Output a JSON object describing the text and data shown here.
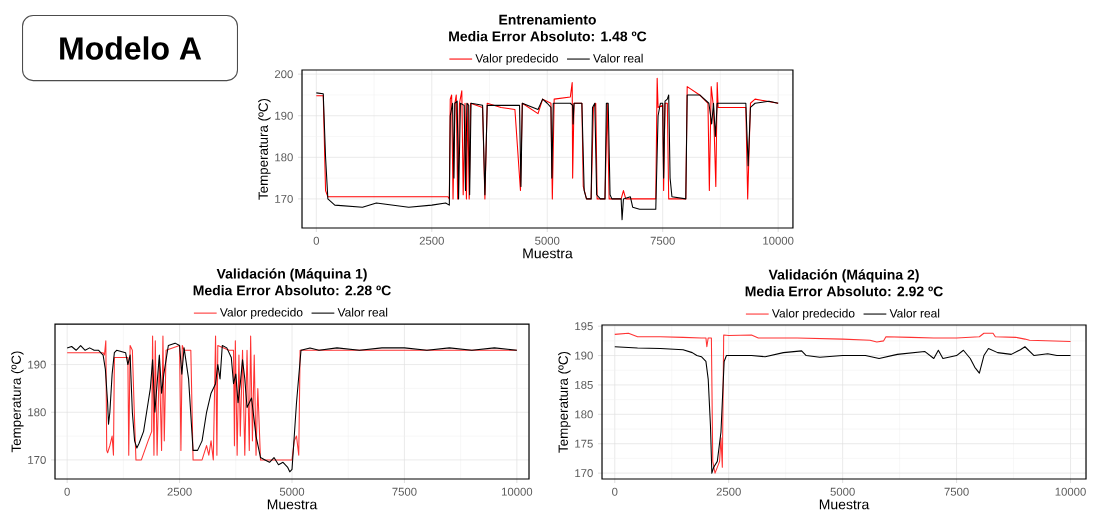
{
  "chart_data": [
    {
      "type": "other",
      "title": "Modelo A"
    },
    {
      "type": "line",
      "title": "Entrenamiento",
      "subtitle": "Media Error Absoluto: 1.48 ºC",
      "xlabel": "Muestra",
      "ylabel": "Temperatura (ºC)",
      "legend": "top",
      "grid": true,
      "xlim": [
        -310,
        10320
      ],
      "ylim": [
        163,
        201
      ],
      "xticks": [
        0,
        2500,
        5000,
        7500,
        10000
      ],
      "yticks": [
        170,
        180,
        190,
        200
      ],
      "series": [
        {
          "name": "Valor predecido",
          "color": "#ff0000",
          "x": [
            0,
            150,
            200,
            250,
            2850,
            2880,
            2900,
            2930,
            2960,
            3000,
            3030,
            3060,
            3100,
            3150,
            3180,
            3220,
            3250,
            3280,
            3310,
            3340,
            3600,
            3650,
            3700,
            4000,
            4300,
            4420,
            4460,
            4800,
            4900,
            5080,
            5110,
            5150,
            5500,
            5540,
            5550,
            5580,
            5750,
            5780,
            5850,
            5950,
            6000,
            6050,
            6080,
            6250,
            6300,
            6340,
            6600,
            6650,
            6700,
            7350,
            7380,
            7400,
            7500,
            7520,
            7550,
            7600,
            7630,
            8000,
            8030,
            8300,
            8480,
            8510,
            8550,
            8600,
            8650,
            8680,
            8700,
            9300,
            9340,
            9400,
            9500,
            10000
          ],
          "values": [
            194.8,
            194.8,
            172,
            170.5,
            170.5,
            170,
            194,
            195,
            170,
            193,
            195,
            170,
            193,
            196,
            171,
            193,
            170,
            193,
            170,
            193,
            192,
            170,
            193,
            192,
            191.5,
            172,
            193,
            190.5,
            194,
            193,
            170,
            194,
            194.5,
            198,
            175,
            193,
            193,
            173,
            170,
            170,
            192,
            193,
            170,
            170,
            193,
            170,
            170,
            172,
            170,
            170,
            199,
            192,
            192.5,
            172,
            193,
            193,
            170,
            170,
            197,
            195,
            193,
            172,
            197,
            192,
            173,
            198,
            192,
            192,
            170,
            193,
            194,
            193
          ]
        },
        {
          "name": "Valor real",
          "color": "#000000",
          "x": [
            0,
            150,
            200,
            250,
            400,
            1000,
            1300,
            2000,
            2500,
            2800,
            2880,
            2900,
            2950,
            2980,
            3000,
            3050,
            3080,
            3120,
            3200,
            3230,
            3260,
            3300,
            3320,
            3350,
            3600,
            3650,
            3700,
            4000,
            4400,
            4430,
            4460,
            4800,
            4900,
            5000,
            5080,
            5100,
            5130,
            5500,
            5550,
            5560,
            5580,
            5750,
            5800,
            5850,
            5950,
            5980,
            6030,
            6070,
            6150,
            6250,
            6280,
            6320,
            6360,
            6400,
            6550,
            6600,
            6620,
            6650,
            6800,
            6850,
            7000,
            7350,
            7400,
            7450,
            7500,
            7520,
            7550,
            7600,
            7630,
            7660,
            7700,
            8000,
            8030,
            8300,
            8500,
            8560,
            8600,
            8640,
            8680,
            9000,
            9300,
            9350,
            9400,
            9500,
            9800,
            10000
          ],
          "values": [
            195.5,
            195.3,
            180,
            170,
            168.5,
            168,
            169,
            168,
            168.5,
            169,
            168.5,
            190,
            193,
            175,
            193,
            193.5,
            170,
            193,
            192.5,
            172,
            193,
            192.5,
            171,
            193,
            192.5,
            171,
            192.5,
            192.5,
            192.5,
            173,
            193,
            191.5,
            194,
            193,
            192,
            175,
            193,
            193,
            192.5,
            188,
            193,
            193,
            172,
            170,
            170,
            192,
            193,
            171,
            170,
            170,
            193,
            193,
            171,
            170,
            170,
            170,
            165,
            170,
            170.5,
            168,
            167.5,
            167.5,
            190,
            193,
            193,
            175,
            193.5,
            194,
            195,
            175,
            170.5,
            170,
            195,
            195,
            193,
            188,
            193,
            185,
            193,
            193,
            193,
            178,
            192,
            193,
            193.5,
            193
          ]
        }
      ]
    },
    {
      "type": "line",
      "title": "Validación (Máquina 1)",
      "subtitle": "Media Error Absoluto: 2.28 ºC",
      "xlabel": "Muestra",
      "ylabel": "Temperatura (ºC)",
      "legend": "top",
      "grid": true,
      "xlim": [
        -270,
        10270
      ],
      "ylim": [
        166,
        198.5
      ],
      "xticks": [
        0,
        2500,
        5000,
        7500,
        10000
      ],
      "yticks": [
        170,
        180,
        190
      ],
      "series": [
        {
          "name": "Valor predecido",
          "color": "#ff3333",
          "x": [
            0,
            800,
            830,
            860,
            880,
            900,
            950,
            1000,
            1030,
            1050,
            1350,
            1370,
            1400,
            1450,
            1500,
            1530,
            1650,
            1800,
            1880,
            1900,
            1930,
            1960,
            2000,
            2050,
            2100,
            2130,
            2160,
            2200,
            2500,
            2530,
            2560,
            2600,
            2750,
            2800,
            3000,
            3100,
            3150,
            3200,
            3250,
            3300,
            3330,
            3350,
            3600,
            3700,
            3720,
            3740,
            3780,
            3820,
            3850,
            3900,
            3950,
            4000,
            4050,
            4080,
            4120,
            4160,
            4200,
            4240,
            4300,
            5000,
            5050,
            5100,
            5150,
            5180,
            10000
          ],
          "values": [
            192.5,
            192.5,
            192,
            195,
            172,
            171.5,
            173,
            175,
            171,
            191.5,
            191.5,
            171,
            194,
            193,
            178,
            170,
            170,
            174,
            176,
            196,
            171,
            195,
            171,
            191,
            172,
            196,
            174,
            193,
            194,
            172,
            194,
            193,
            193,
            170,
            170,
            173,
            171,
            174,
            170,
            196,
            171,
            194,
            193,
            193,
            173,
            195,
            171,
            192,
            175,
            193,
            171,
            193,
            172,
            196,
            174,
            192,
            171,
            185,
            170,
            170,
            174,
            175,
            171,
            193,
            193
          ]
        },
        {
          "name": "Valor real",
          "color": "#000000",
          "x": [
            0,
            100,
            200,
            300,
            400,
            500,
            600,
            700,
            800,
            850,
            900,
            920,
            950,
            1000,
            1050,
            1100,
            1300,
            1350,
            1400,
            1450,
            1500,
            1550,
            1600,
            1700,
            1800,
            1850,
            1900,
            1950,
            2000,
            2050,
            2100,
            2150,
            2250,
            2400,
            2500,
            2550,
            2600,
            2700,
            2800,
            2900,
            3000,
            3100,
            3200,
            3300,
            3350,
            3400,
            3450,
            3550,
            3650,
            3700,
            3750,
            3800,
            3850,
            3900,
            3950,
            4000,
            4100,
            4200,
            4300,
            4400,
            4500,
            4600,
            4700,
            4800,
            4900,
            4950,
            5000,
            5100,
            5200,
            5400,
            5600,
            6000,
            6500,
            7000,
            7500,
            8000,
            8500,
            9000,
            9500,
            10000
          ],
          "values": [
            193.5,
            193.8,
            193,
            194,
            193,
            193.5,
            193,
            193,
            192,
            189,
            182,
            177.5,
            180,
            188,
            192.5,
            193,
            192.5,
            190,
            192,
            180,
            174,
            172.5,
            173.5,
            176,
            182,
            185,
            191,
            180,
            186,
            192,
            184,
            188,
            194,
            194.5,
            194,
            188,
            193.5,
            187,
            172,
            172,
            174,
            180,
            184,
            186,
            190,
            187,
            194,
            193.5,
            191.5,
            186,
            188,
            182,
            186,
            191,
            187,
            181,
            183,
            175,
            170.5,
            170,
            169.5,
            170.5,
            169,
            169.5,
            168.5,
            167.5,
            168,
            182,
            193,
            193.5,
            193,
            193.5,
            193,
            193.5,
            193.5,
            193,
            193.5,
            193,
            193.5,
            193
          ]
        }
      ]
    },
    {
      "type": "line",
      "title": "Validación (Máquina 2)",
      "subtitle": "Media Error Absoluto: 2.92 ºC",
      "xlabel": "Muestra",
      "ylabel": "Temperatura (ºC)",
      "legend": "top",
      "grid": true,
      "xlim": [
        -280,
        10340
      ],
      "ylim": [
        169,
        195.2
      ],
      "xticks": [
        0,
        2500,
        5000,
        7500,
        10000
      ],
      "yticks": [
        170,
        175,
        180,
        185,
        190,
        195
      ],
      "series": [
        {
          "name": "Valor predecido",
          "color": "#ff3333",
          "x": [
            0,
            300,
            500,
            1000,
            1500,
            1900,
            2000,
            2020,
            2050,
            2120,
            2150,
            2200,
            2300,
            2330,
            2360,
            2390,
            2500,
            3000,
            3150,
            4000,
            5000,
            5600,
            5750,
            5900,
            5950,
            6500,
            7000,
            7500,
            8000,
            8100,
            8300,
            8350,
            8800,
            9000,
            9100,
            10000
          ],
          "values": [
            193.6,
            193.8,
            193.2,
            193.2,
            193.1,
            193,
            193,
            191.5,
            193,
            193,
            172,
            170,
            172,
            176,
            171,
            193.5,
            193.4,
            193.5,
            193,
            193,
            192.8,
            192.6,
            192.3,
            192.5,
            193.2,
            193.1,
            193,
            193,
            193.2,
            193.8,
            193.8,
            193.2,
            193.1,
            192.8,
            192.6,
            192.4
          ]
        },
        {
          "name": "Valor real",
          "color": "#000000",
          "x": [
            0,
            500,
            1000,
            1500,
            1700,
            1800,
            1900,
            2000,
            2050,
            2100,
            2130,
            2170,
            2250,
            2330,
            2400,
            2450,
            3000,
            3300,
            3700,
            4100,
            4200,
            4500,
            5000,
            5500,
            5800,
            6200,
            6800,
            7000,
            7100,
            7200,
            7500,
            7650,
            7800,
            7900,
            8000,
            8100,
            8200,
            8400,
            8700,
            8900,
            9000,
            9200,
            9500,
            9700,
            10000
          ],
          "values": [
            191.5,
            191.3,
            191.2,
            191,
            190.5,
            190,
            189.8,
            189,
            186,
            178,
            170,
            171,
            172,
            177,
            189,
            190,
            190,
            189.8,
            190.5,
            190.8,
            190,
            189.7,
            190,
            190,
            189.5,
            190.2,
            190.7,
            189.5,
            190.9,
            189.5,
            190,
            190.9,
            189.5,
            188,
            187,
            190,
            191.2,
            190.5,
            190.2,
            191,
            191.5,
            190,
            190.3,
            190,
            190
          ]
        }
      ]
    }
  ]
}
